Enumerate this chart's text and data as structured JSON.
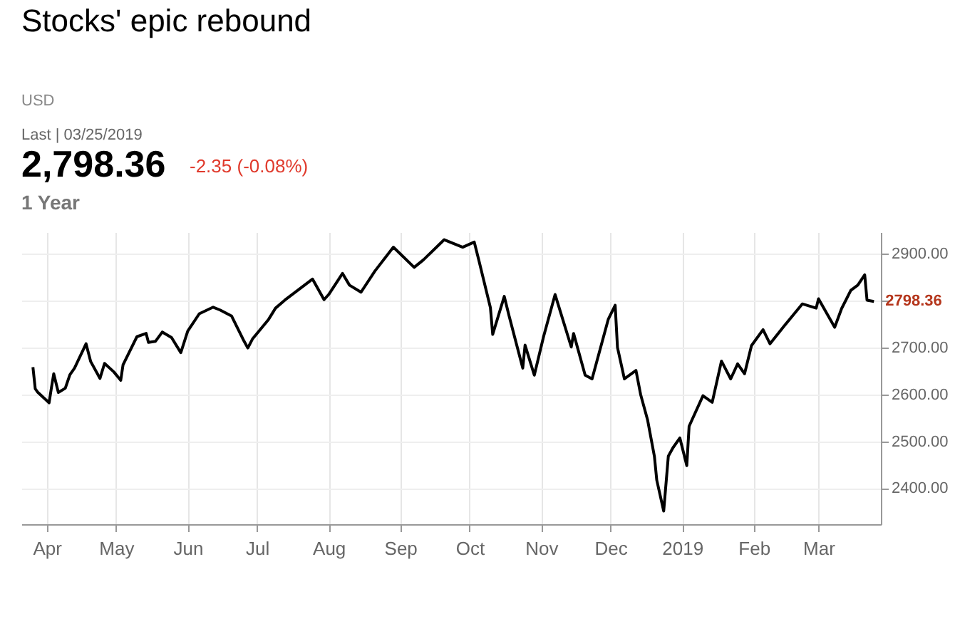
{
  "chart_data": {
    "type": "line",
    "title": "Stocks' epic rebound",
    "annotations": [
      "USD",
      "Last | 03/25/2019",
      "2,798.36",
      "-2.35 (-0.08%)",
      "1 Year",
      {
        "text": "2798.36",
        "x": "2019-03-25",
        "y": 2798.36
      }
    ],
    "x": [
      "2018-03-26",
      "2018-03-27",
      "2018-03-28",
      "2018-04-02",
      "2018-04-03",
      "2018-04-04",
      "2018-04-06",
      "2018-04-09",
      "2018-04-11",
      "2018-04-13",
      "2018-04-18",
      "2018-04-20",
      "2018-04-24",
      "2018-04-26",
      "2018-04-30",
      "2018-05-03",
      "2018-05-04",
      "2018-05-10",
      "2018-05-14",
      "2018-05-15",
      "2018-05-18",
      "2018-05-21",
      "2018-05-25",
      "2018-05-29",
      "2018-06-01",
      "2018-06-06",
      "2018-06-12",
      "2018-06-15",
      "2018-06-20",
      "2018-06-25",
      "2018-06-27",
      "2018-06-29",
      "2018-07-06",
      "2018-07-09",
      "2018-07-13",
      "2018-07-25",
      "2018-07-30",
      "2018-08-01",
      "2018-08-07",
      "2018-08-10",
      "2018-08-15",
      "2018-08-21",
      "2018-08-29",
      "2018-09-07",
      "2018-09-11",
      "2018-09-20",
      "2018-09-28",
      "2018-10-03",
      "2018-10-05",
      "2018-10-10",
      "2018-10-11",
      "2018-10-16",
      "2018-10-18",
      "2018-10-24",
      "2018-10-25",
      "2018-10-29",
      "2018-11-02",
      "2018-11-07",
      "2018-11-09",
      "2018-11-14",
      "2018-11-15",
      "2018-11-20",
      "2018-11-23",
      "2018-11-30",
      "2018-12-03",
      "2018-12-04",
      "2018-12-07",
      "2018-12-12",
      "2018-12-14",
      "2018-12-17",
      "2018-12-20",
      "2018-12-21",
      "2018-12-24",
      "2018-12-26",
      "2018-12-28",
      "2018-12-31",
      "2019-01-03",
      "2019-01-04",
      "2019-01-10",
      "2019-01-14",
      "2019-01-18",
      "2019-01-22",
      "2019-01-25",
      "2019-01-28",
      "2019-01-31",
      "2019-02-05",
      "2019-02-08",
      "2019-02-14",
      "2019-02-22",
      "2019-02-28",
      "2019-03-01",
      "2019-03-08",
      "2019-03-11",
      "2019-03-15",
      "2019-03-18",
      "2019-03-21",
      "2019-03-22",
      "2019-03-25"
    ],
    "series": [
      {
        "color": "#000000",
        "values": [
          2658,
          2612,
          2605,
          2582,
          2614,
          2644,
          2604,
          2613,
          2642,
          2656,
          2708,
          2670,
          2634,
          2666,
          2648,
          2630,
          2663,
          2723,
          2730,
          2711,
          2713,
          2733,
          2721,
          2689,
          2735,
          2772,
          2786,
          2780,
          2767,
          2717,
          2699,
          2718,
          2760,
          2784,
          2801,
          2846,
          2802,
          2813,
          2858,
          2833,
          2818,
          2863,
          2914,
          2871,
          2887,
          2930,
          2914,
          2925,
          2886,
          2785,
          2728,
          2809,
          2769,
          2656,
          2705,
          2641,
          2723,
          2813,
          2781,
          2701,
          2730,
          2641,
          2633,
          2760,
          2790,
          2700,
          2633,
          2651,
          2600,
          2546,
          2467,
          2417,
          2351,
          2468,
          2486,
          2507,
          2448,
          2532,
          2597,
          2583,
          2671,
          2633,
          2665,
          2644,
          2704,
          2738,
          2708,
          2745,
          2793,
          2784,
          2804,
          2743,
          2783,
          2822,
          2833,
          2855,
          2801,
          2798.36
        ]
      }
    ],
    "xlim": [
      "2018-03-21",
      "2019-03-28"
    ],
    "xticks": [
      {
        "value": "2018-04-01",
        "label": "Apr"
      },
      {
        "value": "2018-05-01",
        "label": "May"
      },
      {
        "value": "2018-06-01",
        "label": "Jun"
      },
      {
        "value": "2018-07-01",
        "label": "Jul"
      },
      {
        "value": "2018-08-01",
        "label": "Aug"
      },
      {
        "value": "2018-09-01",
        "label": "Sep"
      },
      {
        "value": "2018-10-01",
        "label": "Oct"
      },
      {
        "value": "2018-11-01",
        "label": "Nov"
      },
      {
        "value": "2018-12-01",
        "label": "Dec"
      },
      {
        "value": "2019-01-01",
        "label": "2019"
      },
      {
        "value": "2019-02-01",
        "label": "Feb"
      },
      {
        "value": "2019-03-01",
        "label": "Mar"
      }
    ],
    "ylim": [
      2323,
      2946
    ],
    "yticks": [
      {
        "value": 2400,
        "label": "2400.00"
      },
      {
        "value": 2500,
        "label": "2500.00"
      },
      {
        "value": 2600,
        "label": "2600.00"
      },
      {
        "value": 2700,
        "label": "2700.00"
      },
      {
        "value": 2800,
        "label": null
      },
      {
        "value": 2900,
        "label": "2900.00"
      }
    ],
    "grid": true,
    "marker": "none",
    "line_style": "solid"
  }
}
